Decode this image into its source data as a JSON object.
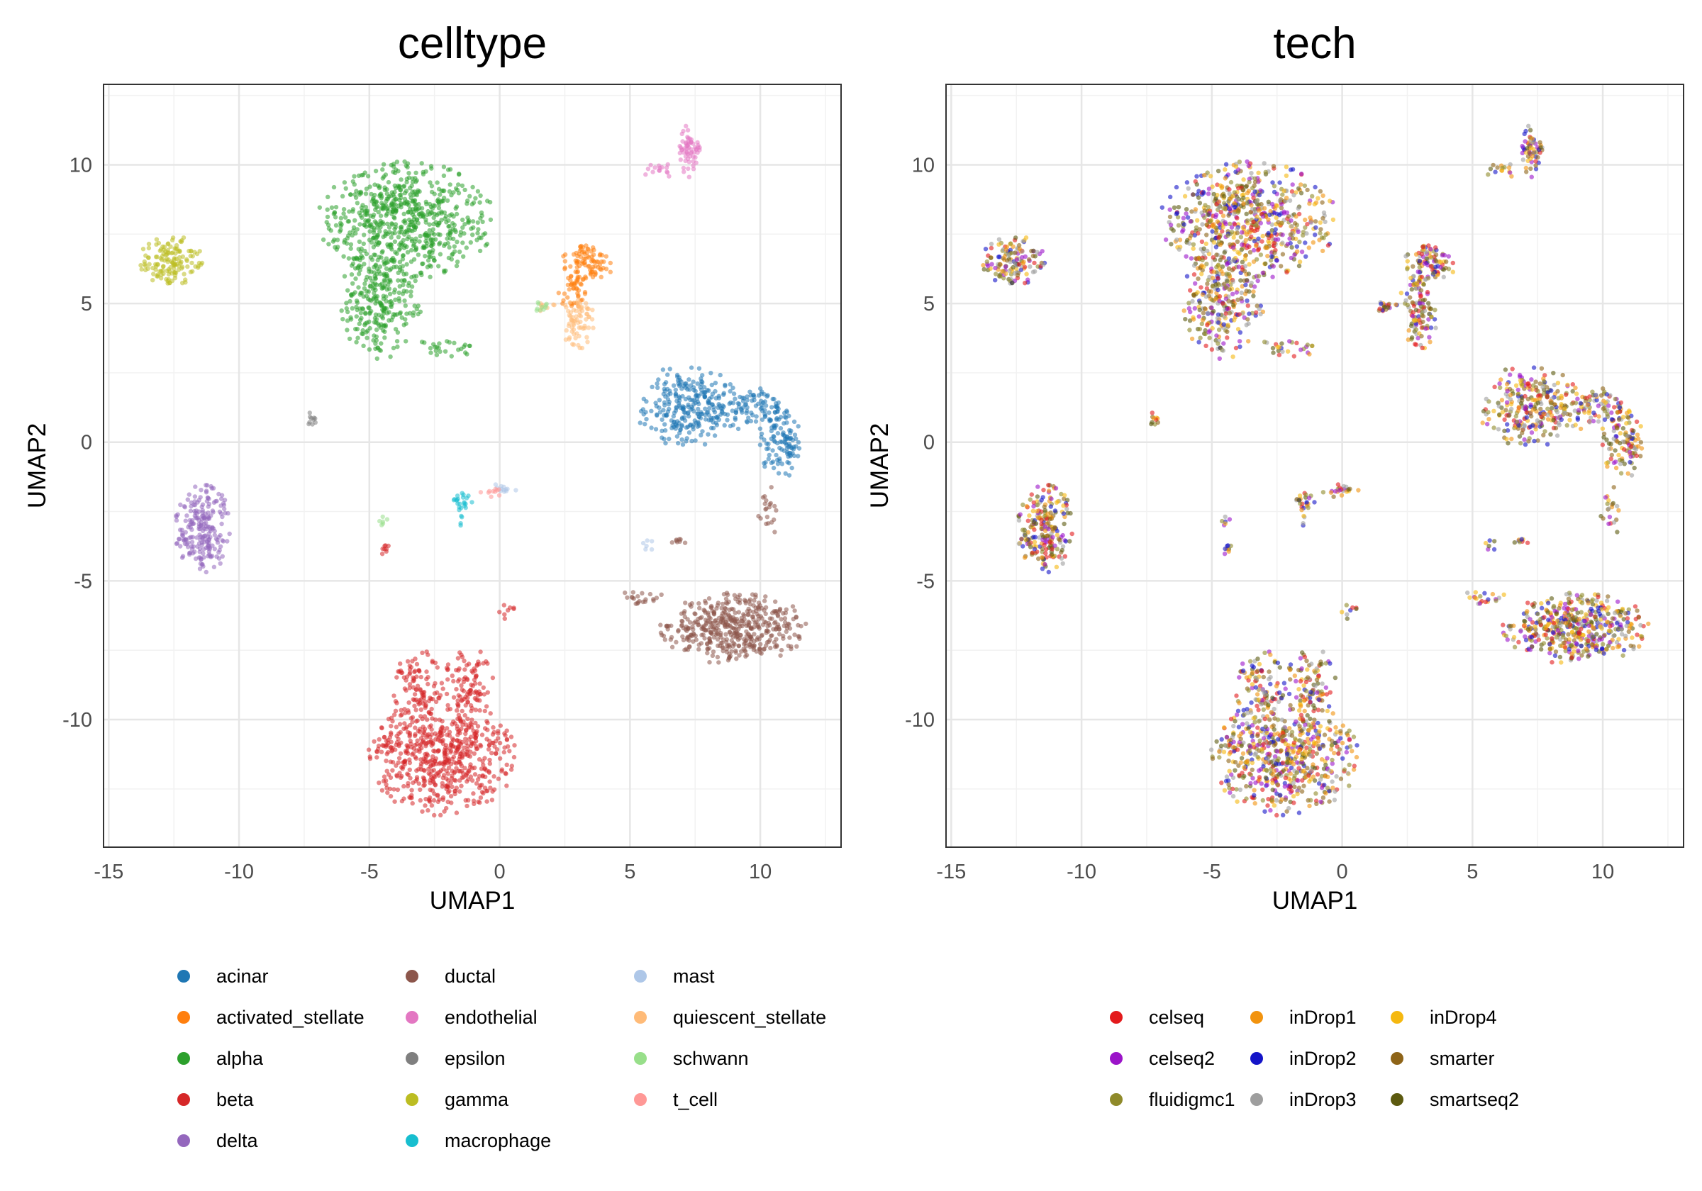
{
  "chart_data": [
    {
      "type": "scatter",
      "title": "celltype",
      "xlabel": "UMAP1",
      "ylabel": "UMAP2",
      "xlim": [
        -15.2,
        13.1
      ],
      "ylim": [
        -14.6,
        12.9
      ],
      "xticks": [
        -15,
        -10,
        -5,
        0,
        5,
        10
      ],
      "yticks": [
        -10,
        -5,
        0,
        5,
        10
      ],
      "xtick_labels": [
        "-15",
        "-10",
        "-5",
        "0",
        "5",
        "10"
      ],
      "ytick_labels": [
        "-10",
        "-5",
        "0",
        "5",
        "10"
      ],
      "grid": true,
      "legend_position": "bottom",
      "legend_columns": 3,
      "series": [
        {
          "name": "acinar",
          "color": "#1f77b4",
          "clusters": [
            {
              "cx": 7.2,
              "cy": 1.3,
              "rx": 1.8,
              "ry": 1.4,
              "n": 260
            },
            {
              "cx": 9.6,
              "cy": 1.2,
              "rx": 1.3,
              "ry": 0.7,
              "n": 90
            },
            {
              "cx": 10.8,
              "cy": 0.0,
              "rx": 0.8,
              "ry": 1.2,
              "n": 110
            }
          ]
        },
        {
          "name": "activated_stellate",
          "color": "#ff7f0e",
          "clusters": [
            {
              "cx": 3.4,
              "cy": 6.5,
              "rx": 0.9,
              "ry": 0.8,
              "n": 90
            },
            {
              "cx": 2.8,
              "cy": 5.4,
              "rx": 0.5,
              "ry": 0.6,
              "n": 40
            }
          ]
        },
        {
          "name": "alpha",
          "color": "#2ca02c",
          "clusters": [
            {
              "cx": -3.6,
              "cy": 8.0,
              "rx": 3.1,
              "ry": 2.0,
              "n": 650
            },
            {
              "cx": -4.6,
              "cy": 5.0,
              "rx": 1.5,
              "ry": 1.9,
              "n": 260
            },
            {
              "cx": -2.0,
              "cy": 3.4,
              "rx": 1.2,
              "ry": 0.3,
              "n": 25
            }
          ]
        },
        {
          "name": "beta",
          "color": "#d62728",
          "clusters": [
            {
              "cx": -2.2,
              "cy": -11.3,
              "rx": 2.6,
              "ry": 2.0,
              "n": 600
            },
            {
              "cx": -3.1,
              "cy": -8.8,
              "rx": 0.9,
              "ry": 1.3,
              "n": 90
            },
            {
              "cx": -1.2,
              "cy": -8.8,
              "rx": 0.9,
              "ry": 1.3,
              "n": 90
            },
            {
              "cx": -4.4,
              "cy": -4.0,
              "rx": 0.2,
              "ry": 0.4,
              "n": 8
            },
            {
              "cx": 0.3,
              "cy": -6.2,
              "rx": 0.3,
              "ry": 0.4,
              "n": 8
            }
          ]
        },
        {
          "name": "delta",
          "color": "#9467bd",
          "clusters": [
            {
              "cx": -11.4,
              "cy": -3.1,
              "rx": 1.0,
              "ry": 1.5,
              "n": 220
            }
          ]
        },
        {
          "name": "ductal",
          "color": "#8c564b",
          "clusters": [
            {
              "cx": 9.0,
              "cy": -6.7,
              "rx": 2.6,
              "ry": 1.2,
              "n": 460
            },
            {
              "cx": 5.4,
              "cy": -5.6,
              "rx": 0.8,
              "ry": 0.3,
              "n": 20
            },
            {
              "cx": 10.3,
              "cy": -2.5,
              "rx": 0.4,
              "ry": 0.9,
              "n": 20
            },
            {
              "cx": 7.0,
              "cy": -3.6,
              "rx": 0.4,
              "ry": 0.1,
              "n": 8
            }
          ]
        },
        {
          "name": "endothelial",
          "color": "#e377c2",
          "clusters": [
            {
              "cx": 7.3,
              "cy": 10.5,
              "rx": 0.4,
              "ry": 0.9,
              "n": 60
            },
            {
              "cx": 6.1,
              "cy": 9.8,
              "rx": 0.6,
              "ry": 0.3,
              "n": 15
            }
          ]
        },
        {
          "name": "epsilon",
          "color": "#7f7f7f",
          "clusters": [
            {
              "cx": -7.2,
              "cy": 0.8,
              "rx": 0.2,
              "ry": 0.3,
              "n": 10
            }
          ]
        },
        {
          "name": "gamma",
          "color": "#bcbd22",
          "clusters": [
            {
              "cx": -12.6,
              "cy": 6.5,
              "rx": 1.2,
              "ry": 0.9,
              "n": 140
            }
          ]
        },
        {
          "name": "macrophage",
          "color": "#17becf",
          "clusters": [
            {
              "cx": -1.3,
              "cy": -2.1,
              "rx": 0.6,
              "ry": 0.3,
              "n": 20
            },
            {
              "cx": -1.5,
              "cy": -2.8,
              "rx": 0.1,
              "ry": 0.5,
              "n": 6
            }
          ]
        },
        {
          "name": "mast",
          "color": "#aec7e8",
          "clusters": [
            {
              "cx": 0.1,
              "cy": -1.7,
              "rx": 0.5,
              "ry": 0.2,
              "n": 12
            },
            {
              "cx": 5.7,
              "cy": -3.7,
              "rx": 0.3,
              "ry": 0.3,
              "n": 6
            }
          ]
        },
        {
          "name": "quiescent_stellate",
          "color": "#ffbb78",
          "clusters": [
            {
              "cx": 3.0,
              "cy": 4.3,
              "rx": 0.6,
              "ry": 0.9,
              "n": 70
            },
            {
              "cx": 1.8,
              "cy": 4.9,
              "rx": 0.4,
              "ry": 0.2,
              "n": 8
            }
          ]
        },
        {
          "name": "schwann",
          "color": "#98df8a",
          "clusters": [
            {
              "cx": 1.6,
              "cy": 4.9,
              "rx": 0.4,
              "ry": 0.2,
              "n": 10
            },
            {
              "cx": -4.5,
              "cy": -2.8,
              "rx": 0.2,
              "ry": 0.3,
              "n": 6
            }
          ]
        },
        {
          "name": "t_cell",
          "color": "#ff9896",
          "clusters": [
            {
              "cx": -0.3,
              "cy": -1.8,
              "rx": 0.4,
              "ry": 0.2,
              "n": 10
            }
          ]
        }
      ]
    },
    {
      "type": "scatter",
      "title": "tech",
      "xlabel": "UMAP1",
      "ylabel": "UMAP2",
      "xlim": [
        -15.2,
        13.1
      ],
      "ylim": [
        -14.6,
        12.9
      ],
      "xticks": [
        -15,
        -10,
        -5,
        0,
        5,
        10
      ],
      "yticks": [
        -10,
        -5,
        0,
        5,
        10
      ],
      "xtick_labels": [
        "-15",
        "-10",
        "-5",
        "0",
        "5",
        "10"
      ],
      "ytick_labels": [
        "-10",
        "-5",
        "0",
        "5",
        "10"
      ],
      "grid": true,
      "legend_position": "bottom",
      "legend_columns": 3,
      "series": [
        {
          "name": "celseq",
          "color": "#e31a1c"
        },
        {
          "name": "celseq2",
          "color": "#9b14c9"
        },
        {
          "name": "fluidigmc1",
          "color": "#8f8a2a"
        },
        {
          "name": "inDrop1",
          "color": "#f2930e"
        },
        {
          "name": "inDrop2",
          "color": "#1414c8"
        },
        {
          "name": "inDrop3",
          "color": "#9e9e9e"
        },
        {
          "name": "inDrop4",
          "color": "#f5b80f"
        },
        {
          "name": "smarter",
          "color": "#8e6418"
        },
        {
          "name": "smartseq2",
          "color": "#5c5a0f"
        }
      ]
    }
  ]
}
